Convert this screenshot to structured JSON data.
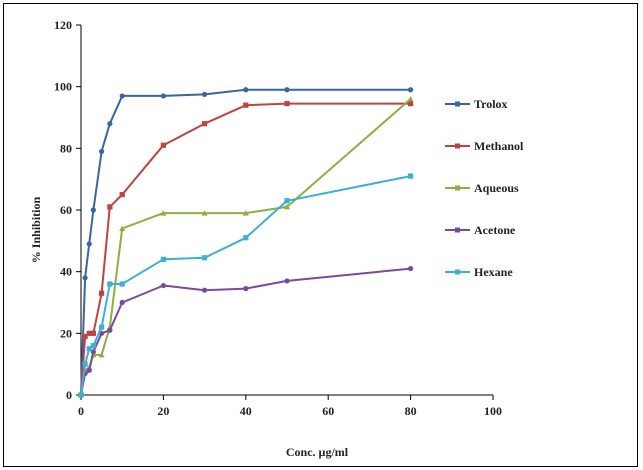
{
  "chart_data": {
    "type": "line",
    "title": "",
    "xlabel": "Conc. µg/ml",
    "ylabel": "% Inhibition",
    "xlim": [
      0,
      100
    ],
    "ylim": [
      0,
      120
    ],
    "xticks": [
      0,
      20,
      40,
      60,
      80,
      100
    ],
    "yticks": [
      0,
      20,
      40,
      60,
      80,
      100,
      120
    ],
    "grid": false,
    "legend_position": "right",
    "series": [
      {
        "name": "Trolox",
        "color": "#3a63a8",
        "x": [
          0,
          1,
          2,
          3,
          5,
          7,
          10,
          20,
          30,
          40,
          50,
          80
        ],
        "y": [
          0,
          38,
          49,
          60,
          79,
          88,
          97,
          97,
          97.5,
          99,
          99,
          99
        ]
      },
      {
        "name": "Methanol",
        "color": "#c0433f",
        "x": [
          0,
          1,
          2,
          3,
          5,
          7,
          10,
          20,
          30,
          40,
          50,
          80
        ],
        "y": [
          0,
          19,
          20,
          20,
          33,
          61,
          65,
          81,
          88,
          94,
          94.5,
          94.5
        ]
      },
      {
        "name": "Aqueous",
        "color": "#8ab040",
        "x": [
          0,
          1,
          2,
          3,
          5,
          7,
          10,
          20,
          30,
          40,
          50,
          80
        ],
        "y": [
          0,
          8,
          9,
          13,
          13,
          22,
          54,
          59,
          59,
          59,
          61,
          96
        ]
      },
      {
        "name": "Acetone",
        "color": "#7a4aa0",
        "x": [
          0,
          1,
          2,
          3,
          5,
          7,
          10,
          20,
          30,
          40,
          50,
          80
        ],
        "y": [
          0,
          7,
          8,
          14,
          20,
          21,
          30,
          35.5,
          34,
          34.5,
          37,
          41
        ]
      },
      {
        "name": "Hexane",
        "color": "#3ab0d8",
        "x": [
          0,
          1,
          2,
          3,
          5,
          7,
          10,
          20,
          30,
          40,
          50,
          80
        ],
        "y": [
          0,
          10,
          15,
          16,
          22,
          36,
          36,
          44,
          44.5,
          51,
          63,
          71
        ]
      }
    ]
  }
}
